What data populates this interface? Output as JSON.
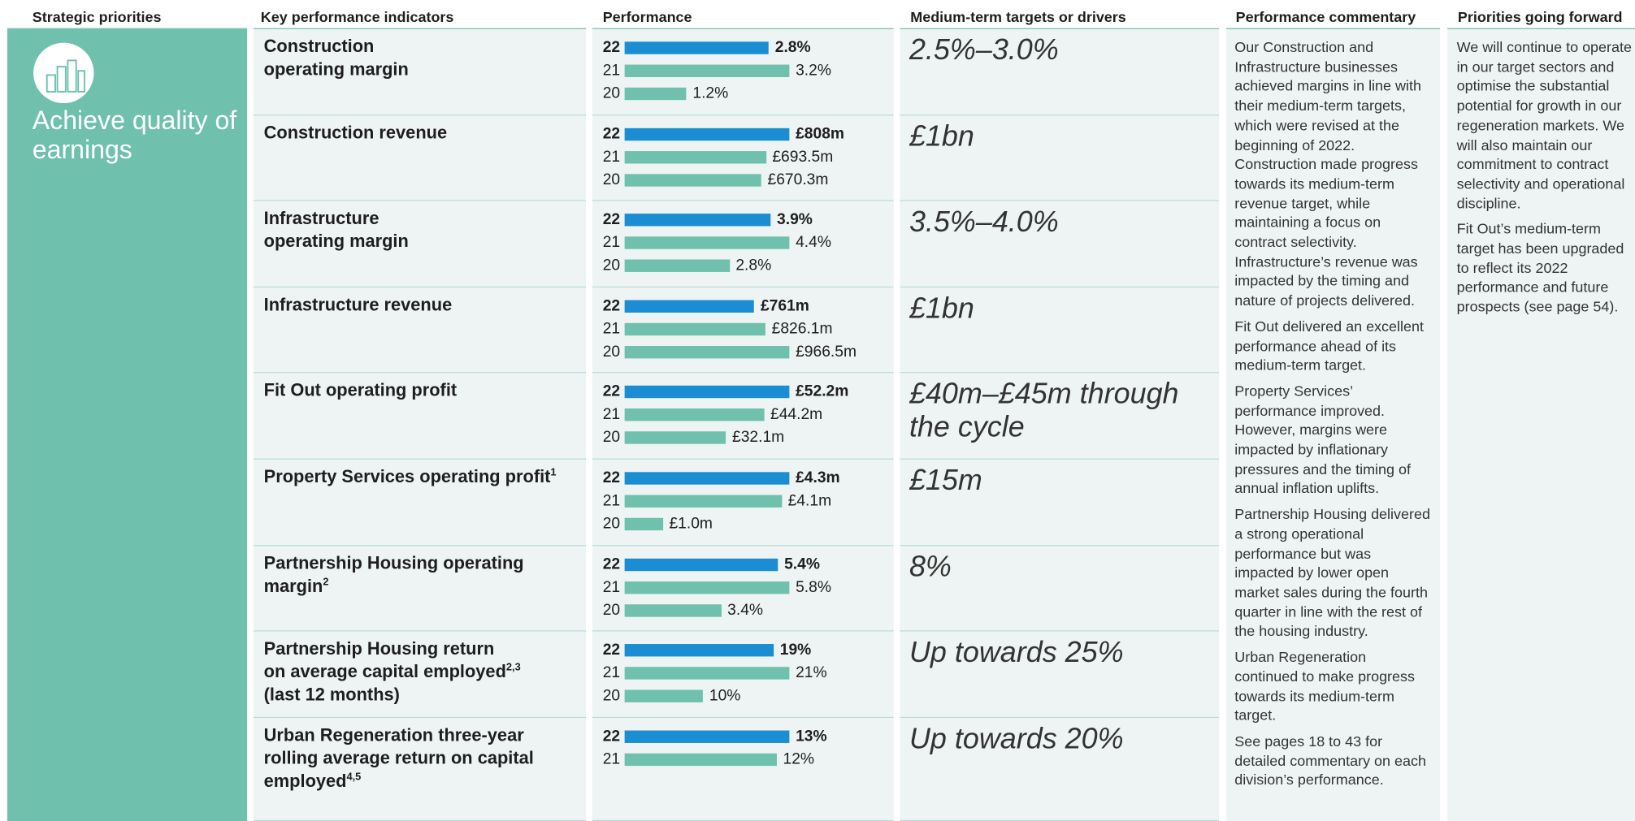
{
  "header": {
    "columns": [
      "Strategic priorities",
      "Key performance indicators",
      "Performance",
      "Medium-term targets or drivers",
      "Performance commentary",
      "Priorities going forward"
    ]
  },
  "priority": "Achieve quality of earnings",
  "kpis": [
    {
      "lines": [
        "Construction",
        "operating margin"
      ],
      "target": "2.5%–3.0%",
      "rows": [
        {
          "year": "22",
          "value": 2.8,
          "value_label": "2.8%"
        },
        {
          "year": "21",
          "value": 3.2,
          "value_label": "3.2%"
        },
        {
          "year": "20",
          "value": 1.2,
          "value_label": "1.2%"
        }
      ]
    },
    {
      "lines": [
        "Construction revenue"
      ],
      "target": "£1bn",
      "rows": [
        {
          "year": "22",
          "value": 808,
          "value_label": "£808m"
        },
        {
          "year": "21",
          "value": 693.5,
          "value_label": "£693.5m"
        },
        {
          "year": "20",
          "value": 670.3,
          "value_label": "£670.3m"
        }
      ]
    },
    {
      "lines": [
        "Infrastructure",
        "operating margin"
      ],
      "target": "3.5%–4.0%",
      "rows": [
        {
          "year": "22",
          "value": 3.9,
          "value_label": "3.9%"
        },
        {
          "year": "21",
          "value": 4.4,
          "value_label": "4.4%"
        },
        {
          "year": "20",
          "value": 2.8,
          "value_label": "2.8%"
        }
      ]
    },
    {
      "lines": [
        "Infrastructure revenue"
      ],
      "target": "£1bn",
      "rows": [
        {
          "year": "22",
          "value": 761,
          "value_label": "£761m"
        },
        {
          "year": "21",
          "value": 826.1,
          "value_label": "£826.1m"
        },
        {
          "year": "20",
          "value": 966.5,
          "value_label": "£966.5m"
        }
      ]
    },
    {
      "lines": [
        "Fit Out operating profit"
      ],
      "target": "£40m–£45m through the cycle",
      "rows": [
        {
          "year": "22",
          "value": 52.2,
          "value_label": "£52.2m"
        },
        {
          "year": "21",
          "value": 44.2,
          "value_label": "£44.2m"
        },
        {
          "year": "20",
          "value": 32.1,
          "value_label": "£32.1m"
        }
      ]
    },
    {
      "lines": [
        {
          "text": "Property Services operating profit",
          "note": "1"
        }
      ],
      "target": "£15m",
      "rows": [
        {
          "year": "22",
          "value": 4.3,
          "value_label": "£4.3m"
        },
        {
          "year": "21",
          "value": 4.1,
          "value_label": "£4.1m"
        },
        {
          "year": "20",
          "value": 1.0,
          "value_label": "£1.0m"
        }
      ]
    },
    {
      "lines": [
        "Partnership Housing operating",
        {
          "text": "margin",
          "note": "2"
        }
      ],
      "target": "8%",
      "rows": [
        {
          "year": "22",
          "value": 5.4,
          "value_label": "5.4%"
        },
        {
          "year": "21",
          "value": 5.8,
          "value_label": "5.8%"
        },
        {
          "year": "20",
          "value": 3.4,
          "value_label": "3.4%"
        }
      ]
    },
    {
      "lines": [
        "Partnership Housing return",
        {
          "text": "on average capital employed",
          "note": "2,3"
        },
        "(last 12 months)"
      ],
      "target": "Up towards 25%",
      "rows": [
        {
          "year": "22",
          "value": 19,
          "value_label": "19%"
        },
        {
          "year": "21",
          "value": 21,
          "value_label": "21%"
        },
        {
          "year": "20",
          "value": 10,
          "value_label": "10%"
        }
      ]
    },
    {
      "lines": [
        "Urban Regeneration three-year",
        "rolling average return on capital",
        {
          "text": "employed",
          "note": "4,5"
        }
      ],
      "target": "Up towards 20%",
      "rows": [
        {
          "year": "22",
          "value": 13,
          "value_label": "13%"
        },
        {
          "year": "21",
          "value": 12,
          "value_label": "12%"
        }
      ]
    }
  ],
  "commentary": [
    "Our Construction and Infrastructure businesses achieved margins in line with their medium-term targets, which were revised at the beginning of 2022. Construction made progress towards its medium-term revenue target, while maintaining a focus on contract selectivity. Infrastructure’s revenue was impacted by the timing and nature of projects delivered.",
    "Fit Out delivered an excellent performance ahead of its medium-term target.",
    "Property Services’ performance improved. However, margins were impacted by inflationary pressures and the timing of annual inflation uplifts.",
    "Partnership Housing delivered a strong operational performance but was impacted by lower open market sales during the fourth quarter in line with the rest of the housing industry.",
    "Urban Regeneration continued to make progress towards its medium-term target.",
    "See pages 18 to 43 for detailed commentary on each division’s performance."
  ],
  "forward": [
    "We will continue to operate in our target sectors and optimise the substantial potential for growth in our regeneration markets. We will also maintain our commitment to contract selectivity and operational discipline.",
    "Fit Out’s medium-term target has been upgraded to reflect its 2022 performance and future prospects (see page 54)."
  ]
}
